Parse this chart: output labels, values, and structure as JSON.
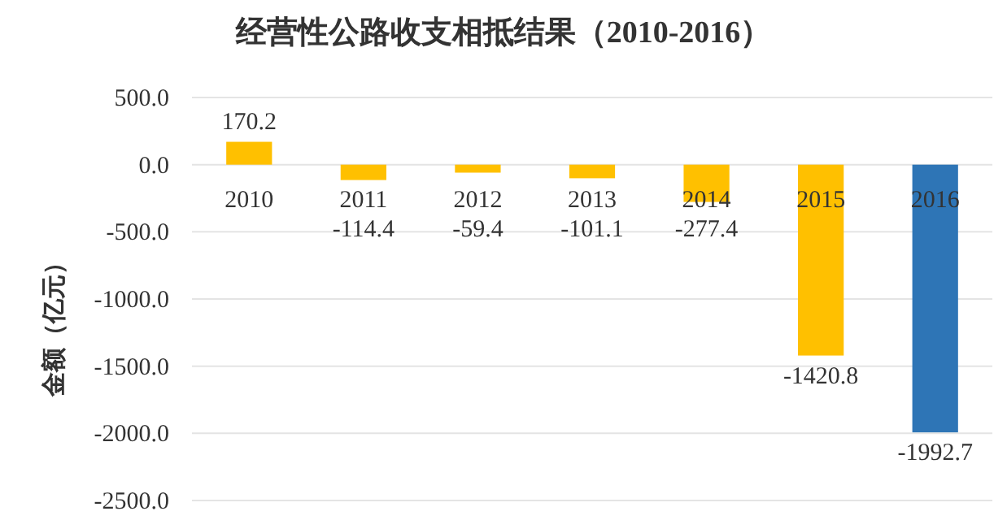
{
  "chart_data": {
    "type": "bar",
    "title": "经营性公路收支相抵结果（2010-2016）",
    "ylabel": "金额（亿元）",
    "categories": [
      "2010",
      "2011",
      "2012",
      "2013",
      "2014",
      "2015",
      "2016"
    ],
    "values": [
      170.2,
      -114.4,
      -59.4,
      -101.1,
      -277.4,
      -1420.8,
      -1992.7
    ],
    "colors": [
      "#ffc000",
      "#ffc000",
      "#ffc000",
      "#ffc000",
      "#ffc000",
      "#ffc000",
      "#2e75b6"
    ],
    "ylim": [
      -2500,
      500
    ],
    "yticks": [
      {
        "value": 500,
        "label": "500.0"
      },
      {
        "value": 0,
        "label": "0.0"
      },
      {
        "value": -500,
        "label": "-500.0"
      },
      {
        "value": -1000,
        "label": "-1000.0"
      },
      {
        "value": -1500,
        "label": "-1500.0"
      },
      {
        "value": -2000,
        "label": "-2000.0"
      },
      {
        "value": -2500,
        "label": "-2500.0"
      }
    ],
    "grid": "y",
    "data_labels": true
  }
}
